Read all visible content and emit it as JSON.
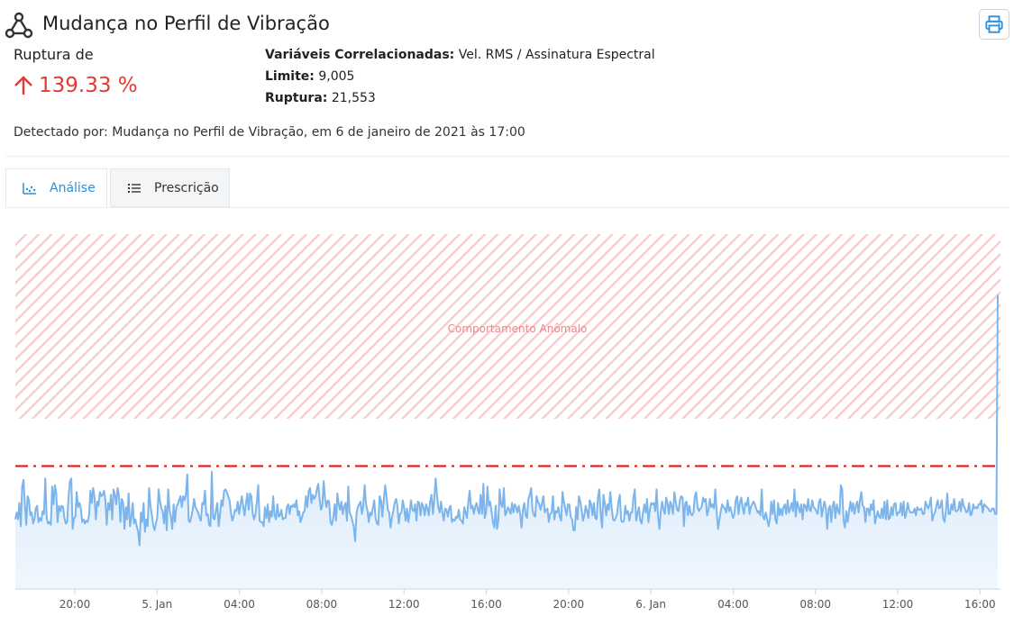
{
  "header": {
    "title": "Mudança no Perfil de Vibração",
    "icon": "network-nodes-icon",
    "print_icon": "printer-icon"
  },
  "rupture": {
    "label": "Ruptura de",
    "value": "139.33 %",
    "direction_icon": "arrow-up-icon",
    "color": "#e53935"
  },
  "details": {
    "vars_label": "Variáveis Correlacionadas:",
    "vars_value": "Vel. RMS / Assinatura Espectral",
    "limit_label": "Limite:",
    "limit_value": "9,005",
    "rupture_label": "Ruptura:",
    "rupture_value": "21,553"
  },
  "detected_text": "Detectado por: Mudança no Perfil de Vibração, em 6 de janeiro de 2021 às 17:00",
  "tabs": [
    {
      "label": "Análise",
      "icon": "scatter-chart-icon",
      "active": true
    },
    {
      "label": "Prescrição",
      "icon": "list-icon",
      "active": false
    }
  ],
  "colors": {
    "accent": "#2b8fd9",
    "line": "#7cb5ec",
    "threshold": "#ff0000",
    "anomaly_band": "#f9c9c9"
  },
  "chart_data": {
    "type": "area",
    "band_label": "Comportamento Anômalo",
    "threshold": 9.005,
    "last_value": 21.553,
    "x_tick_labels": [
      "20:00",
      "5. Jan",
      "04:00",
      "08:00",
      "12:00",
      "16:00",
      "20:00",
      "6. Jan",
      "04:00",
      "08:00",
      "12:00",
      "16:00"
    ],
    "ylim": [
      0,
      26
    ],
    "grid": false,
    "legend": "none",
    "values": [
      5.1,
      5.6,
      5.1,
      6.3,
      4.6,
      7.5,
      8.0,
      6.2,
      4.7,
      6.8,
      6.5,
      5.4,
      5.6,
      4.8,
      5.1,
      5.9,
      6.1,
      4.9,
      5.2,
      5.0,
      5.7,
      5.5,
      8.1,
      5.2,
      4.8,
      4.9,
      4.7,
      7.5,
      6.2,
      7.6,
      7.0,
      4.9,
      6.1,
      5.7,
      6.1,
      6.0,
      5.2,
      4.8,
      4.9,
      6.7,
      7.9,
      8.1,
      4.4,
      5.2,
      5.3,
      7.1,
      6.0,
      6.3,
      5.9,
      4.9,
      5.1,
      4.8,
      5.0,
      4.9,
      5.4,
      7.2,
      6.3,
      7.4,
      6.8,
      5.1,
      6.4,
      6.1,
      7.1,
      6.8,
      6.9,
      7.2,
      6.5,
      4.7,
      6.3,
      5.8,
      6.9,
      5.1,
      7.3,
      6.9,
      6.2,
      7.4,
      6.8,
      4.9,
      6.6,
      6.3,
      4.4,
      6.0,
      5.1,
      7.0,
      4.6,
      5.2,
      6.3,
      4.8,
      5.1,
      4.6,
      4.2,
      3.2,
      5.6,
      4.9,
      6.3,
      4.2,
      5.1,
      4.6,
      7.4,
      6.1,
      5.5,
      4.7,
      4.3,
      4.8,
      5.2,
      7.3,
      6.4,
      5.9,
      5.7,
      4.8,
      6.1,
      4.3,
      7.3,
      5.8,
      5.3,
      4.4,
      6.2,
      4.9,
      6.0,
      6.2,
      6.5,
      6.8,
      6.0,
      6.8,
      6.5,
      6.9,
      8.4,
      5.0,
      4.9,
      5.3,
      5.8,
      6.6,
      6.0,
      5.8,
      5.6,
      5.2,
      5.0,
      6.3,
      6.2,
      7.2,
      5.4,
      5.5,
      4.7,
      4.6,
      8.6,
      5.2,
      5.1,
      5.7,
      6.3,
      4.6,
      5.4,
      6.5,
      6.1,
      7.2,
      7.3,
      7.1,
      6.8,
      6.5,
      5.6,
      5.0,
      5.3,
      5.8,
      5.7,
      6.4,
      5.5,
      6.2,
      6.8,
      6.1,
      5.4,
      6.2,
      7.0,
      5.8,
      7.0,
      6.8,
      5.5,
      5.1,
      5.5,
      6.4,
      7.6,
      5.0,
      4.9,
      4.9,
      4.6,
      6.0,
      5.2,
      6.2,
      4.9,
      5.7,
      5.3,
      6.8,
      5.4,
      5.1,
      6.2,
      5.3,
      5.4,
      5.8,
      5.1,
      5.2,
      5.2,
      6.0,
      6.2,
      5.5,
      6.1,
      6.0,
      6.2,
      6.0,
      6.5,
      5.4,
      5.7,
      4.9,
      5.2,
      5.6,
      5.7,
      6.8,
      6.0,
      7.2,
      7.4,
      6.3,
      6.9,
      6.6,
      6.8,
      7.3,
      7.7,
      6.6,
      5.8,
      6.1,
      7.9,
      6.6,
      6.0,
      6.5,
      6.4,
      4.9,
      4.7,
      5.2,
      6.2,
      5.0,
      7.0,
      6.2,
      5.8,
      6.4,
      5.5,
      6.0,
      6.3,
      5.0,
      7.5,
      5.6,
      5.4,
      5.0,
      4.6,
      3.5,
      5.5,
      6.0,
      6.2,
      6.4,
      5.5,
      6.1,
      7.6,
      6.2,
      5.8,
      4.9,
      5.6,
      5.4,
      5.9,
      6.5,
      5.2,
      4.8,
      4.7,
      6.8,
      6.5,
      5.3,
      6.5,
      7.6,
      6.8,
      5.8,
      5.6,
      4.5,
      5.2,
      5.7,
      6.3,
      6.6,
      6.1,
      4.8,
      5.5,
      5.6,
      6.5,
      5.9,
      5.0,
      5.9,
      4.9,
      5.6,
      6.5,
      5.8,
      5.7,
      6.2,
      5.0,
      6.4,
      6.3,
      5.4,
      6.3,
      6.0,
      5.4,
      6.2,
      5.9,
      5.4,
      6.4,
      6.9,
      5.5,
      6.6,
      8.1,
      6.9,
      6.0,
      5.6,
      6.4,
      5.6,
      5.0,
      5.9,
      5.8,
      5.3,
      5.9,
      6.1,
      4.9,
      5.1,
      5.0,
      5.3,
      5.2,
      5.8,
      5.1,
      5.0,
      4.8,
      6.0,
      5.6,
      5.2,
      6.4,
      7.2,
      5.9,
      6.1,
      5.5,
      6.0,
      6.3,
      5.8,
      5.5,
      6.9,
      5.5,
      7.7,
      5.2,
      5.6,
      7.5,
      6.1,
      6.4,
      5.7,
      4.9,
      4.5,
      6.1,
      4.4,
      5.0,
      7.3,
      6.2,
      6.0,
      7.4,
      5.4,
      5.6,
      6.0,
      5.8,
      5.5,
      6.3,
      5.6,
      6.2,
      6.0,
      5.6,
      6.1,
      5.5,
      4.5,
      5.8,
      6.3,
      5.4,
      5.2,
      6.6,
      6.9,
      7.4,
      5.8,
      5.4,
      5.3,
      6.8,
      6.4,
      6.2,
      5.8,
      6.3,
      6.8,
      5.6,
      5.8,
      5.9,
      4.9,
      5.5,
      5.6,
      6.8,
      5.1,
      5.7,
      5.6,
      6.0,
      5.3,
      5.0,
      7.1,
      6.4,
      5.9,
      5.4,
      6.2,
      6.2,
      5.3,
      5.1,
      4.3,
      4.3,
      6.0,
      5.1,
      6.8,
      6.4,
      5.8,
      5.0,
      5.4,
      6.1,
      5.7,
      5.2,
      6.5,
      6.2,
      5.4,
      6.3,
      5.2,
      5.1,
      6.7,
      7.3,
      5.5,
      4.5,
      6.9,
      6.3,
      5.4,
      6.2,
      5.8,
      7.1,
      6.0,
      5.1,
      5.0,
      5.2,
      5.5,
      6.4,
      6.9,
      5.0,
      4.9,
      5.0,
      6.1,
      5.5,
      5.7,
      5.0,
      5.6,
      5.6,
      6.7,
      7.3,
      5.0,
      5.5,
      6.0,
      5.0,
      4.8,
      5.6,
      6.2,
      5.6,
      6.6,
      4.9,
      5.8,
      6.3,
      6.2,
      6.3,
      5.7,
      7.3,
      5.4,
      4.4,
      5.7,
      6.4,
      5.8,
      5.5,
      6.7,
      6.3,
      5.5,
      6.4,
      6.1,
      5.5,
      7.1,
      6.4,
      5.8,
      5.7,
      6.5,
      6.8,
      6.7,
      4.6,
      6.3,
      6.4,
      5.4,
      6.1,
      5.5,
      5.4,
      5.6,
      6.8,
      7.1,
      6.0,
      5.7,
      5.9,
      6.0,
      6.7,
      6.4,
      6.6,
      5.4,
      5.8,
      6.6,
      6.0,
      6.2,
      5.9,
      7.3,
      5.7,
      4.4,
      5.1,
      5.7,
      6.2,
      6.0,
      5.9,
      5.6,
      6.5,
      5.7,
      6.0,
      5.6,
      5.2,
      5.5,
      6.5,
      6.8,
      5.5,
      6.3,
      6.7,
      6.0,
      5.5,
      6.3,
      6.1,
      6.7,
      5.5,
      6.0,
      6.2,
      6.4,
      6.2,
      5.9,
      5.6,
      5.7,
      5.4,
      7.3,
      5.3,
      5.1,
      5.6,
      5.1,
      4.6,
      5.1,
      6.4,
      5.5,
      6.5,
      5.1,
      4.8,
      6.3,
      5.4,
      5.9,
      5.4,
      6.0,
      6.2,
      5.5,
      6.5,
      5.6,
      5.9,
      6.3,
      5.7,
      7.3,
      5.3,
      6.4,
      6.0,
      5.6,
      6.2,
      5.1,
      6.2,
      6.1,
      5.7,
      6.6,
      5.8,
      5.7,
      6.5,
      6.0,
      5.9,
      5.7,
      5.5,
      6.4,
      6.6,
      5.3,
      5.9,
      6.4,
      5.9,
      4.4,
      5.9,
      6.1,
      4.9,
      6.1,
      6.4,
      5.2,
      6.2,
      5.7,
      5.5,
      7.6,
      7.3,
      5.0,
      4.5,
      5.7,
      4.9,
      5.7,
      6.4,
      5.7,
      6.3,
      5.5,
      6.1,
      6.4,
      5.6,
      6.5,
      7.1,
      6.1,
      6.0,
      4.9,
      5.9,
      5.9,
      5.4,
      6.2,
      5.8,
      6.5,
      4.8,
      5.3,
      5.7,
      5.3,
      5.2,
      5.9,
      5.2,
      6.4,
      5.1,
      6.5,
      5.1,
      5.2,
      6.0,
      5.4,
      6.2,
      6.3,
      5.4,
      5.6,
      5.6,
      6.3,
      5.4,
      6.4,
      5.2,
      5.6,
      6.3,
      5.8,
      5.6,
      5.6,
      5.6,
      5.9,
      5.4,
      6.0,
      5.8,
      5.8,
      5.9,
      5.5,
      5.5,
      6.4,
      6.1,
      5.9,
      6.2,
      6.7,
      5.0,
      5.4,
      5.6,
      6.1,
      6.5,
      5.9,
      6.0,
      6.5,
      5.2,
      4.9,
      5.8,
      7.0,
      5.5,
      5.5,
      6.2,
      5.8,
      6.6,
      5.7,
      5.7,
      5.8,
      6.4,
      5.7,
      6.6,
      6.1,
      5.9,
      5.6,
      5.7,
      6.3,
      5.4,
      5.5,
      6.2,
      5.9,
      6.0,
      5.9,
      6.2,
      6.2,
      6.5,
      5.6,
      6.2,
      6.1,
      6.0,
      5.9,
      5.7,
      5.7,
      5.9,
      5.9,
      5.5,
      5.5,
      21.553
    ]
  }
}
